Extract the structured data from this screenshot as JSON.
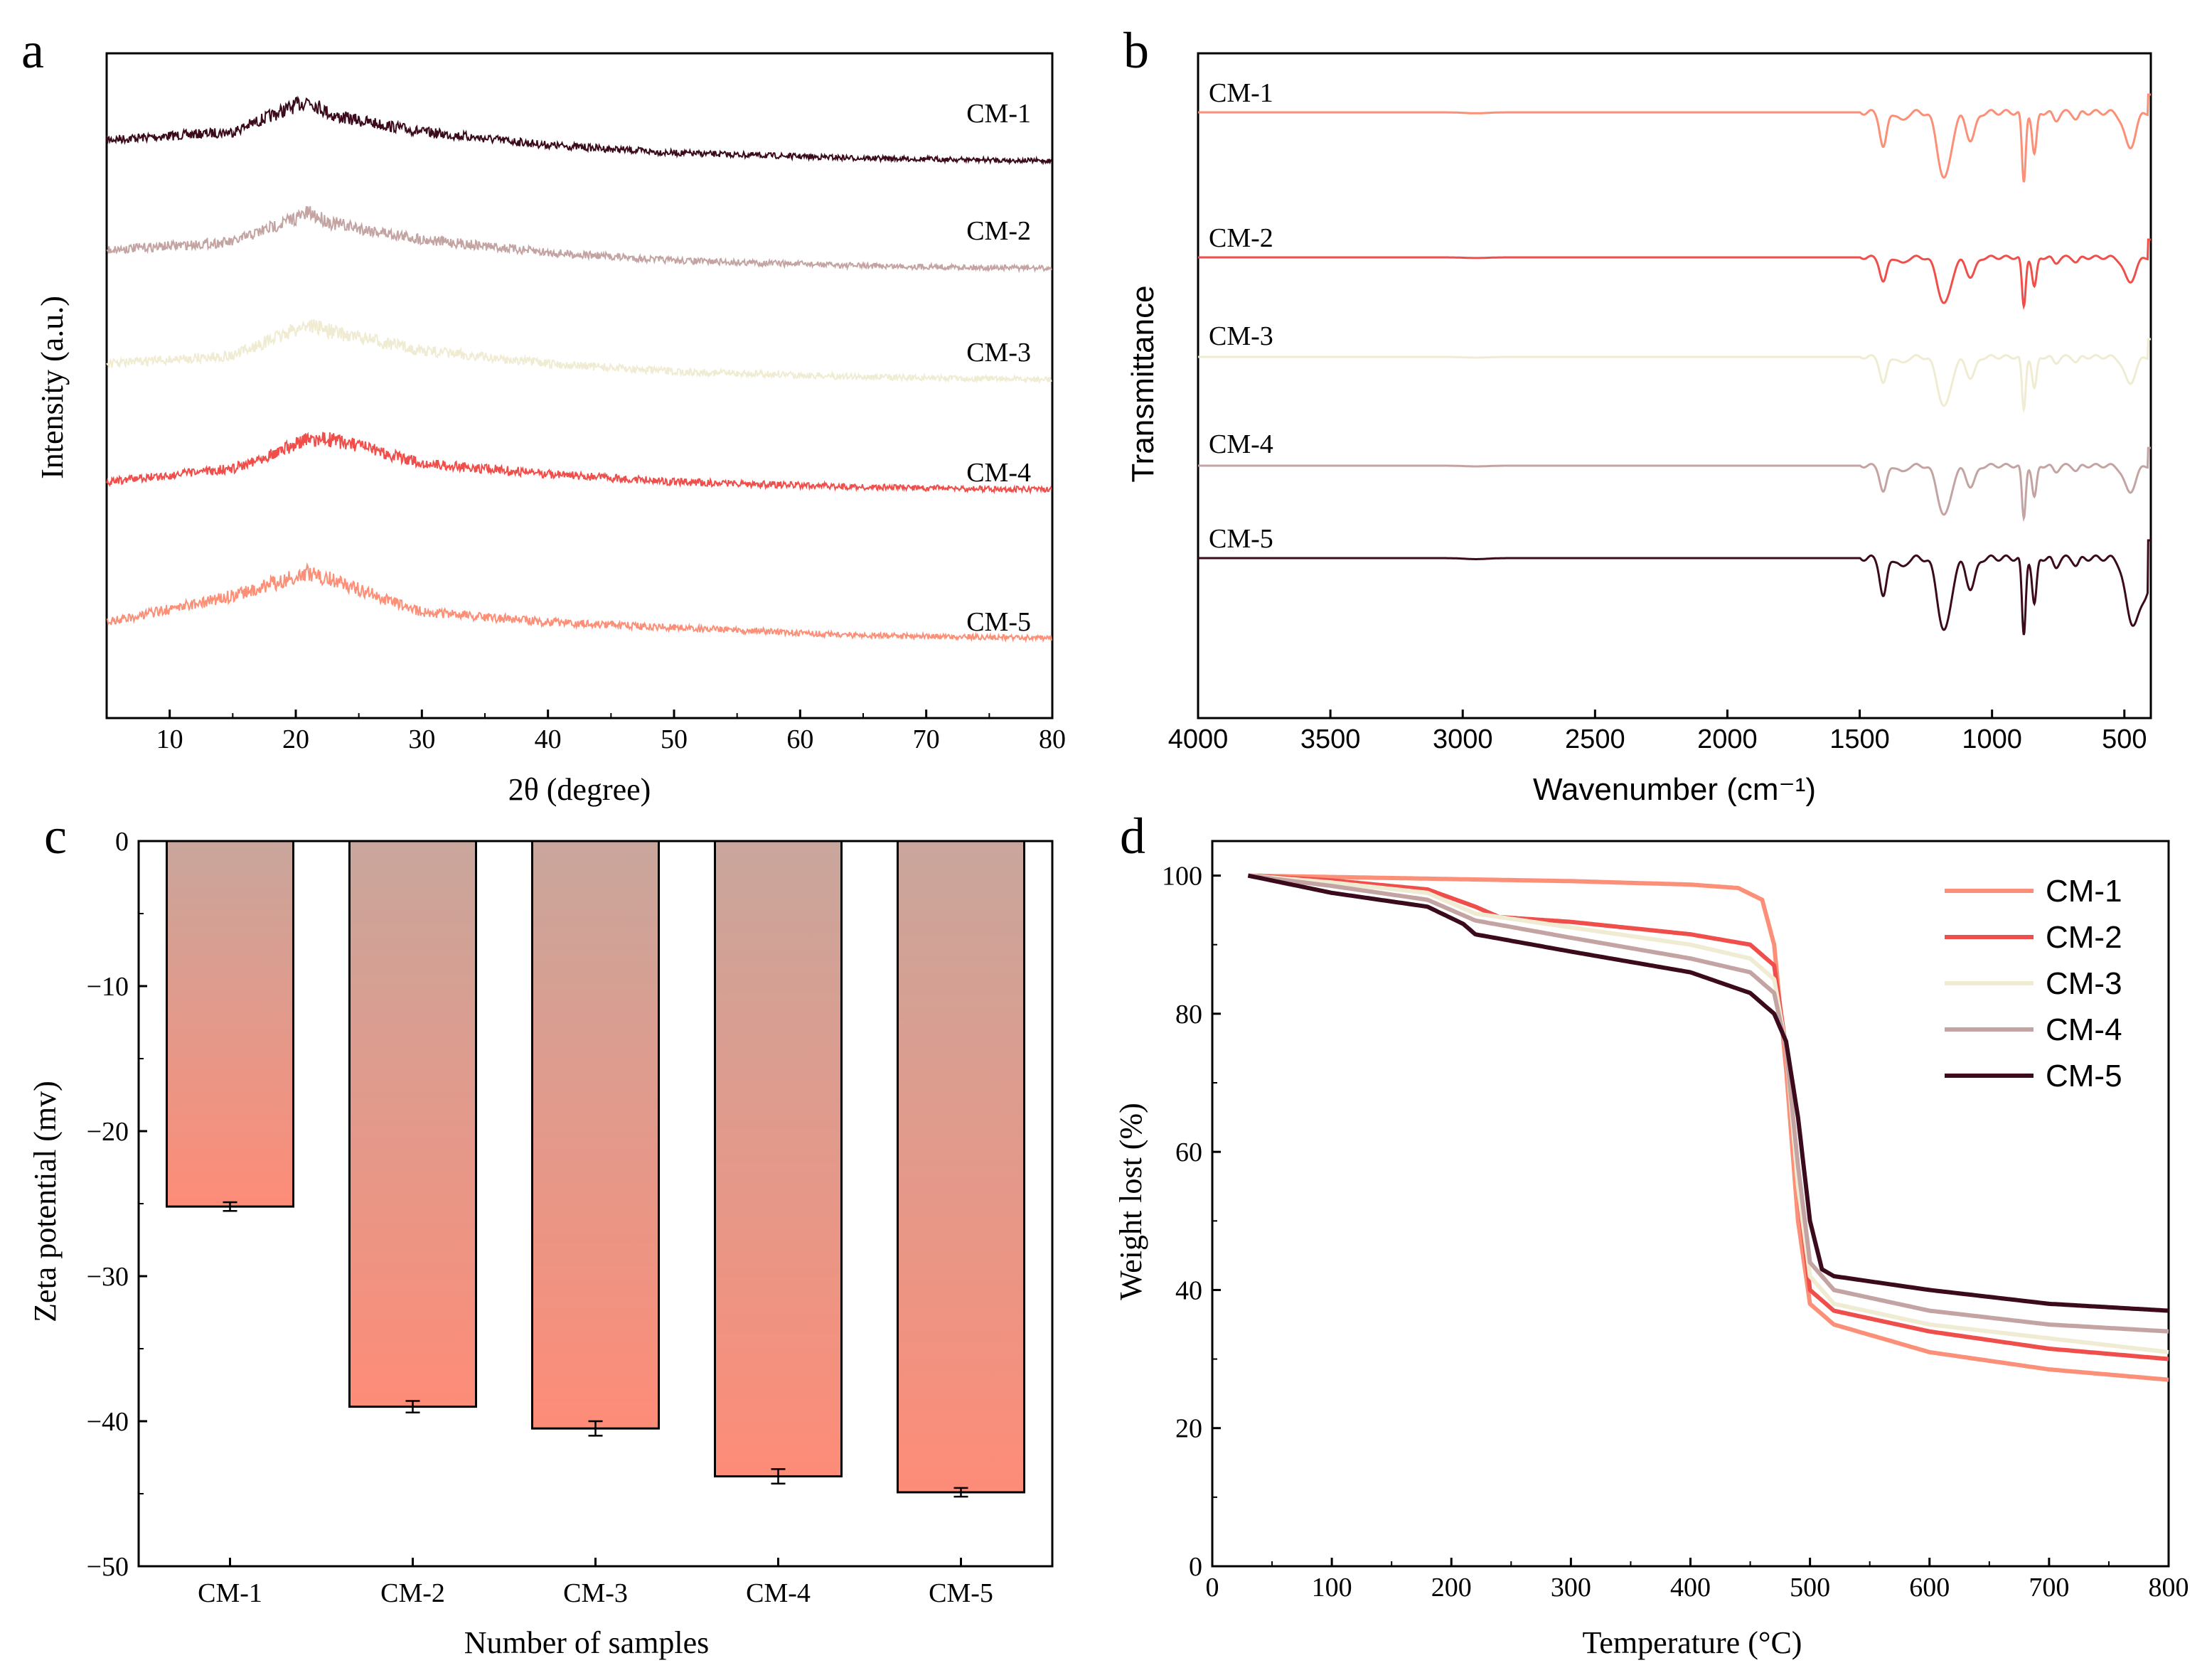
{
  "colors": {
    "cm1": "#fb8f77",
    "cm2": "#ef4e4a",
    "cm3": "#f0ecd3",
    "cm4": "#c4a4a3",
    "cm5": "#3b0a1c",
    "cm1_xrd": "#3b0a1c",
    "cm2_xrd": "#c4a4a3",
    "cm3_xrd": "#f0ecd3",
    "cm4_xrd": "#ef4e4a",
    "cm5_xrd": "#fb8f77",
    "bar_top": "#c9a69c",
    "bar_bottom": "#fd8c78",
    "axis": "#000000"
  },
  "panels": {
    "a": {
      "letter": "a",
      "chart_data": {
        "type": "line",
        "xlabel": "2θ (degree)",
        "ylabel": "Intensity (a.u.)",
        "xlim": [
          5,
          80
        ],
        "xticks": [
          "10",
          "20",
          "30",
          "40",
          "50",
          "60",
          "70",
          "80"
        ],
        "series": [
          {
            "name": "CM-1",
            "offset": 4,
            "baseline": [
              0.45,
              0.6,
              1.2,
              0.9,
              0.6,
              0.35,
              0.2,
              0.1,
              0.05
            ],
            "x": [
              5,
              15,
              21,
              23,
              30,
              40,
              50,
              65,
              80
            ]
          },
          {
            "name": "CM-2",
            "offset": 3,
            "baseline": [
              0.45,
              0.6,
              1.15,
              0.95,
              0.65,
              0.4,
              0.25,
              0.15,
              0.1
            ],
            "x": [
              5,
              15,
              21,
              23,
              30,
              40,
              50,
              65,
              80
            ]
          },
          {
            "name": "CM-3",
            "offset": 2,
            "baseline": [
              0.45,
              0.6,
              1.2,
              1.05,
              0.7,
              0.45,
              0.3,
              0.2,
              0.15
            ],
            "x": [
              5,
              15,
              21,
              23,
              30,
              40,
              50,
              65,
              80
            ]
          },
          {
            "name": "CM-4",
            "offset": 1,
            "baseline": [
              0.3,
              0.55,
              1.1,
              1.1,
              0.65,
              0.45,
              0.3,
              0.2,
              0.15
            ],
            "x": [
              5,
              15,
              21,
              23,
              30,
              40,
              50,
              65,
              80
            ]
          },
          {
            "name": "CM-5",
            "offset": 0,
            "baseline": [
              0.4,
              0.9,
              1.35,
              1.2,
              0.6,
              0.4,
              0.3,
              0.15,
              0.1
            ],
            "x": [
              5,
              15,
              21,
              23,
              30,
              40,
              50,
              65,
              80
            ]
          }
        ]
      }
    },
    "b": {
      "letter": "b",
      "chart_data": {
        "type": "line",
        "xlabel": "Wavenumber (cm⁻¹)",
        "ylabel": "Transmittance",
        "xlim": [
          4000,
          400
        ],
        "xticks": [
          "4000",
          "3500",
          "3000",
          "2500",
          "2000",
          "1500",
          "1000",
          "500"
        ],
        "dips": [
          {
            "x": 1410,
            "depth": 0.45,
            "w": 18
          },
          {
            "x": 1340,
            "depth": 0.12,
            "w": 20
          },
          {
            "x": 1180,
            "depth": 0.85,
            "w": 35
          },
          {
            "x": 1080,
            "depth": 0.35,
            "w": 25
          },
          {
            "x": 880,
            "depth": 0.9,
            "w": 10
          },
          {
            "x": 840,
            "depth": 0.55,
            "w": 12
          },
          {
            "x": 760,
            "depth": 0.1,
            "w": 15
          },
          {
            "x": 680,
            "depth": 0.08,
            "w": 15
          },
          {
            "x": 480,
            "depth": 0.45,
            "w": 30
          }
        ],
        "series": [
          {
            "name": "CM-1",
            "offset": 4,
            "scale": 1.0
          },
          {
            "name": "CM-2",
            "offset": 3,
            "scale": 0.7
          },
          {
            "name": "CM-3",
            "offset": 2,
            "scale": 0.75
          },
          {
            "name": "CM-4",
            "offset": 1,
            "scale": 0.75
          },
          {
            "name": "CM-5",
            "offset": 0,
            "scale": 1.1,
            "tail": 1.2
          }
        ]
      }
    },
    "c": {
      "letter": "c",
      "chart_data": {
        "type": "bar",
        "categories": [
          "CM-1",
          "CM-2",
          "CM-3",
          "CM-4",
          "CM-5"
        ],
        "values": [
          -25.2,
          -39.0,
          -40.5,
          -43.8,
          -44.9
        ],
        "errors": [
          0.3,
          0.4,
          0.5,
          0.5,
          0.3
        ],
        "xlabel": "Number of samples",
        "ylabel": "Zeta potential (mv)",
        "ylim": [
          -50,
          0
        ],
        "yticks": [
          "0",
          "−10",
          "−20",
          "−30",
          "−40",
          "−50"
        ]
      }
    },
    "d": {
      "letter": "d",
      "chart_data": {
        "type": "line",
        "xlabel": "Temperature (°C)",
        "ylabel": "Weight lost (%)",
        "xlim": [
          0,
          800
        ],
        "ylim": [
          0,
          100
        ],
        "xticks": [
          "0",
          "100",
          "200",
          "300",
          "400",
          "500",
          "600",
          "700",
          "800"
        ],
        "yticks": [
          "0",
          "20",
          "40",
          "60",
          "80",
          "100"
        ],
        "legend_position": "top-right",
        "series": [
          {
            "name": "CM-1",
            "x": [
              30,
              100,
              200,
              300,
              400,
              440,
              460,
              470,
              480,
              490,
              500,
              520,
              560,
              600,
              700,
              800
            ],
            "y": [
              100,
              99.8,
              99.5,
              99.2,
              98.7,
              98.2,
              96.5,
              90,
              72,
              50,
              38,
              35,
              33,
              31,
              28.5,
              27
            ]
          },
          {
            "name": "CM-2",
            "x": [
              30,
              100,
              180,
              220,
              240,
              300,
              400,
              450,
              470,
              480,
              490,
              500,
              520,
              600,
              700,
              800
            ],
            "y": [
              100,
              99.3,
              98,
              95.5,
              94,
              93.3,
              91.5,
              90,
              87,
              75,
              55,
              40,
              37,
              34,
              31.5,
              30
            ]
          },
          {
            "name": "CM-3",
            "x": [
              30,
              100,
              180,
              220,
              300,
              400,
              450,
              470,
              480,
              490,
              500,
              520,
              600,
              700,
              800
            ],
            "y": [
              100,
              99,
              97.5,
              94.5,
              92.5,
              90,
              88,
              85,
              75,
              55,
              42,
              38,
              35,
              33,
              31
            ]
          },
          {
            "name": "CM-4",
            "x": [
              30,
              100,
              180,
              220,
              300,
              400,
              450,
              470,
              480,
              490,
              500,
              520,
              600,
              700,
              800
            ],
            "y": [
              100,
              98.5,
              96.5,
              93.5,
              91,
              88,
              86,
              83,
              75,
              58,
              44,
              40,
              37,
              35,
              34
            ]
          },
          {
            "name": "CM-5",
            "x": [
              30,
              100,
              180,
              210,
              220,
              300,
              400,
              450,
              470,
              480,
              490,
              500,
              510,
              520,
              600,
              700,
              800
            ],
            "y": [
              100,
              97.5,
              95.5,
              93,
              91.5,
              89,
              86,
              83,
              80,
              76,
              65,
              50,
              43,
              42,
              40,
              38,
              37
            ]
          }
        ]
      }
    }
  }
}
